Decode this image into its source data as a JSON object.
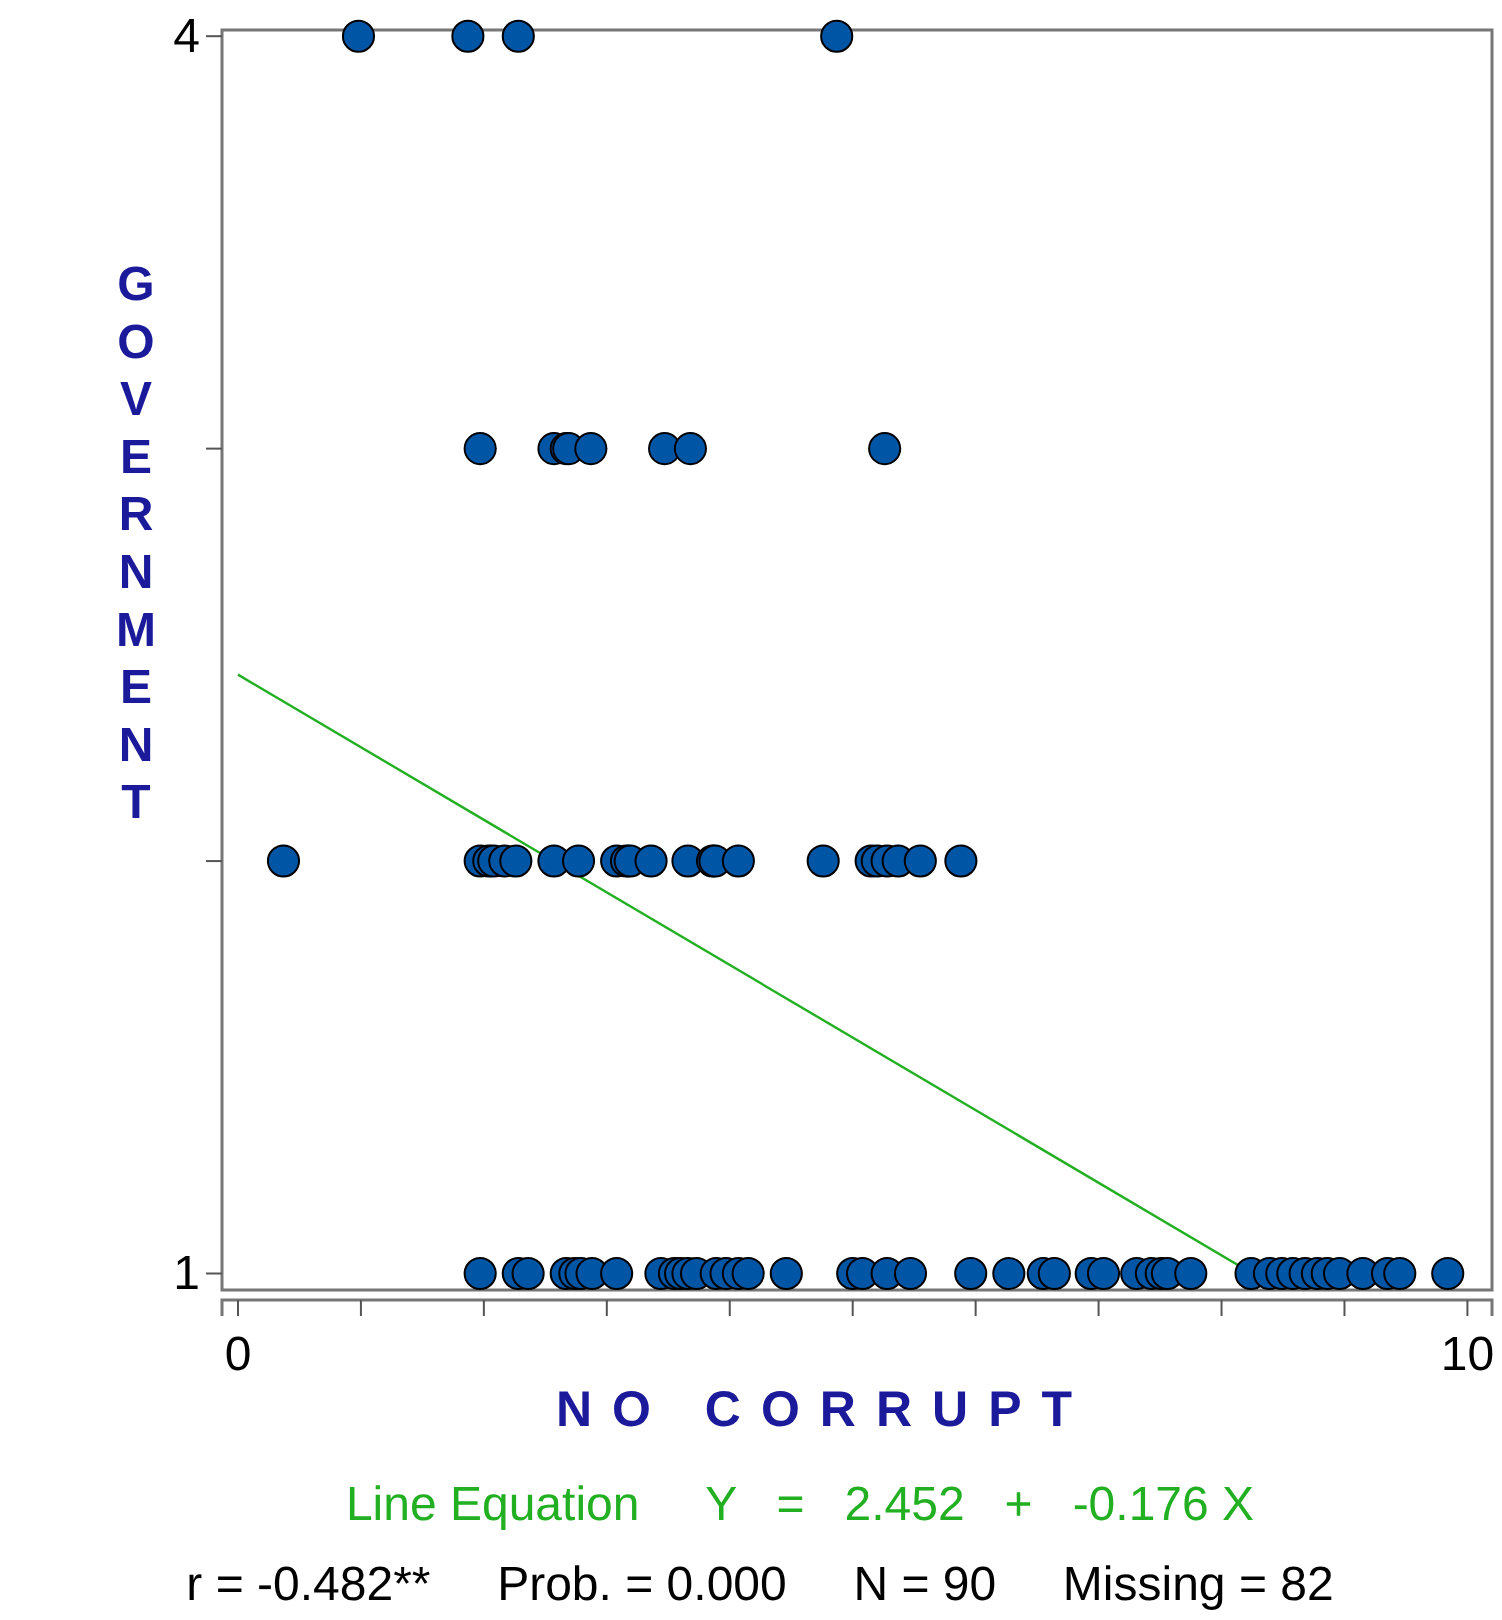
{
  "chart_data": {
    "type": "scatter",
    "xlabel": "NO CORRUPT",
    "ylabel": "GOVERNMENT",
    "xlim": [
      -0.13,
      10.2
    ],
    "ylim": [
      0.96,
      4.015
    ],
    "xticks": [
      0,
      {
        "value": 1,
        "label": null
      },
      {
        "value": 2,
        "label": null
      },
      {
        "value": 3,
        "label": null
      },
      {
        "value": 4,
        "label": null
      },
      {
        "value": 5,
        "label": null
      },
      {
        "value": 6,
        "label": null
      },
      {
        "value": 7,
        "label": null
      },
      {
        "value": 8,
        "label": null
      },
      {
        "value": 9,
        "label": null
      },
      10
    ],
    "yticks": [
      1,
      {
        "value": 2,
        "label": null
      },
      {
        "value": 3,
        "label": null
      },
      4
    ],
    "grid": false,
    "series": [
      {
        "color": "#0055a5",
        "marker": "circle",
        "x": [
          1.97,
          2.28,
          2.36,
          2.67,
          2.74,
          2.79,
          2.88,
          3.08,
          3.44,
          3.55,
          3.6,
          3.66,
          3.73,
          3.89,
          3.97,
          4.07,
          4.15,
          4.46,
          5.0,
          5.08,
          5.28,
          5.47,
          5.96,
          6.27,
          6.55,
          6.64,
          6.94,
          7.04,
          7.31,
          7.43,
          7.51,
          7.56,
          7.75,
          8.24,
          8.39,
          8.49,
          8.58,
          8.68,
          8.78,
          8.86,
          8.96,
          9.15,
          9.35,
          9.45,
          9.84,
          0.37,
          1.97,
          2.04,
          2.08,
          2.17,
          2.26,
          2.57,
          2.77,
          3.08,
          3.16,
          3.19,
          3.36,
          3.66,
          3.86,
          3.88,
          4.07,
          4.76,
          5.15,
          5.2,
          5.28,
          5.37,
          5.55,
          5.88,
          1.97,
          2.57,
          2.67,
          2.69,
          2.87,
          3.47,
          3.68,
          5.26,
          0.98,
          1.87,
          2.28,
          4.87
        ],
        "values": [
          1,
          1,
          1,
          1,
          1,
          1,
          1,
          1,
          1,
          1,
          1,
          1,
          1,
          1,
          1,
          1,
          1,
          1,
          1,
          1,
          1,
          1,
          1,
          1,
          1,
          1,
          1,
          1,
          1,
          1,
          1,
          1,
          1,
          1,
          1,
          1,
          1,
          1,
          1,
          1,
          1,
          1,
          1,
          1,
          1,
          2,
          2,
          2,
          2,
          2,
          2,
          2,
          2,
          2,
          2,
          2,
          2,
          2,
          2,
          2,
          2,
          2,
          2,
          2,
          2,
          2,
          2,
          2,
          3,
          3,
          3,
          3,
          3,
          3,
          3,
          3,
          4,
          4,
          4,
          4
        ]
      },
      {
        "type": "line",
        "color": "#22b022",
        "x": [
          0,
          8.25
        ],
        "values": [
          2.452,
          1.0
        ],
        "line_style": "solid"
      }
    ],
    "annotations": [
      "Line Equation     Y   =   2.452   +   -0.176 X",
      "r = -0.482**     Prob. = 0.000     N = 90     Missing = 82"
    ]
  }
}
